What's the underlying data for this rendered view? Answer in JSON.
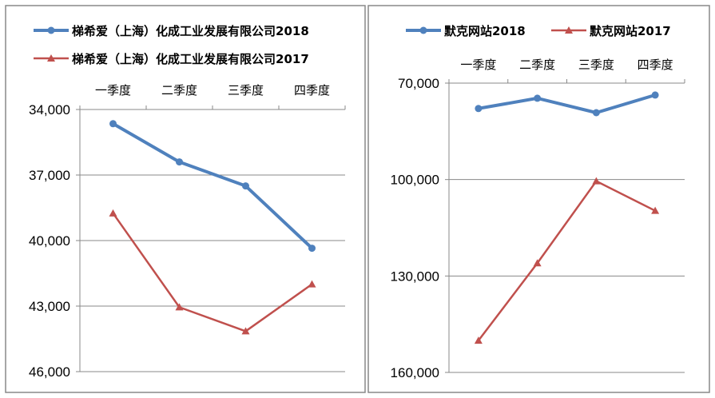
{
  "chart_data": [
    {
      "type": "line",
      "reversed_y": true,
      "categories": [
        "一季度",
        "二季度",
        "三季度",
        "四季度"
      ],
      "yticks": [
        "34,000",
        "37,000",
        "40,000",
        "43,000",
        "46,000"
      ],
      "ytick_values": [
        34000,
        37000,
        40000,
        43000,
        46000
      ],
      "ylim": [
        34000,
        46000
      ],
      "legend_position": "top",
      "series": [
        {
          "name": "梯希爱（上海）化成工业发展有限公司2018",
          "color": "#4F81BD",
          "marker": "circle",
          "values": [
            34650,
            36400,
            37500,
            40350
          ]
        },
        {
          "name": "梯希爱（上海）化成工业发展有限公司2017",
          "color": "#C0504D",
          "marker": "triangle",
          "values": [
            38750,
            43050,
            44150,
            42000
          ]
        }
      ]
    },
    {
      "type": "line",
      "reversed_y": true,
      "categories": [
        "一季度",
        "二季度",
        "三季度",
        "四季度"
      ],
      "yticks": [
        "70,000",
        "100,000",
        "130,000",
        "160,000"
      ],
      "ytick_values": [
        70000,
        100000,
        130000,
        160000
      ],
      "ylim": [
        70000,
        160000
      ],
      "legend_position": "top",
      "series": [
        {
          "name": "默克网站2018",
          "color": "#4F81BD",
          "marker": "circle",
          "values": [
            77900,
            74700,
            79200,
            73700
          ]
        },
        {
          "name": "默克网站2017",
          "color": "#C0504D",
          "marker": "triangle",
          "values": [
            150100,
            126000,
            100500,
            109700
          ]
        }
      ]
    }
  ]
}
